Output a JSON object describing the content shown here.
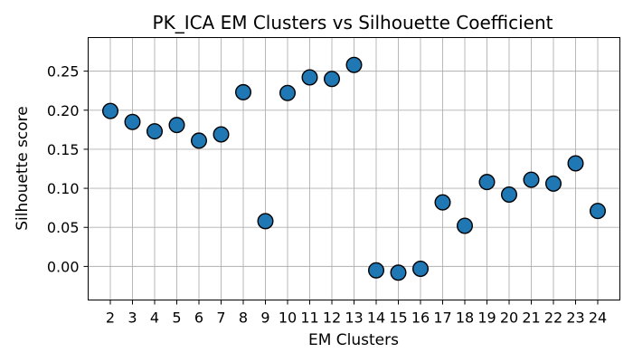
{
  "chart_data": {
    "type": "scatter",
    "title": "PK_ICA EM Clusters vs Silhouette Coefficient",
    "xlabel": "EM Clusters",
    "ylabel": "Silhouette score",
    "x": [
      2,
      3,
      4,
      5,
      6,
      7,
      8,
      9,
      10,
      11,
      12,
      13,
      14,
      15,
      16,
      17,
      18,
      19,
      20,
      21,
      22,
      23,
      24
    ],
    "y": [
      0.199,
      0.185,
      0.173,
      0.181,
      0.161,
      0.169,
      0.223,
      0.058,
      0.222,
      0.242,
      0.24,
      0.258,
      -0.005,
      -0.008,
      -0.003,
      0.082,
      0.052,
      0.108,
      0.092,
      0.111,
      0.106,
      0.132,
      0.071
    ],
    "xticks": [
      "2",
      "3",
      "4",
      "5",
      "6",
      "7",
      "8",
      "9",
      "10",
      "11",
      "12",
      "13",
      "14",
      "15",
      "16",
      "17",
      "18",
      "19",
      "20",
      "21",
      "22",
      "23",
      "24"
    ],
    "yticks": [
      0.0,
      0.05,
      0.1,
      0.15,
      0.2,
      0.25
    ],
    "ytick_labels": [
      "0.00",
      "0.05",
      "0.10",
      "0.15",
      "0.20",
      "0.25"
    ],
    "xlim": [
      1.0,
      25.0
    ],
    "ylim": [
      -0.043,
      0.293
    ],
    "grid": true,
    "marker_color": "#1f77b4",
    "edge_color": "#000000"
  }
}
